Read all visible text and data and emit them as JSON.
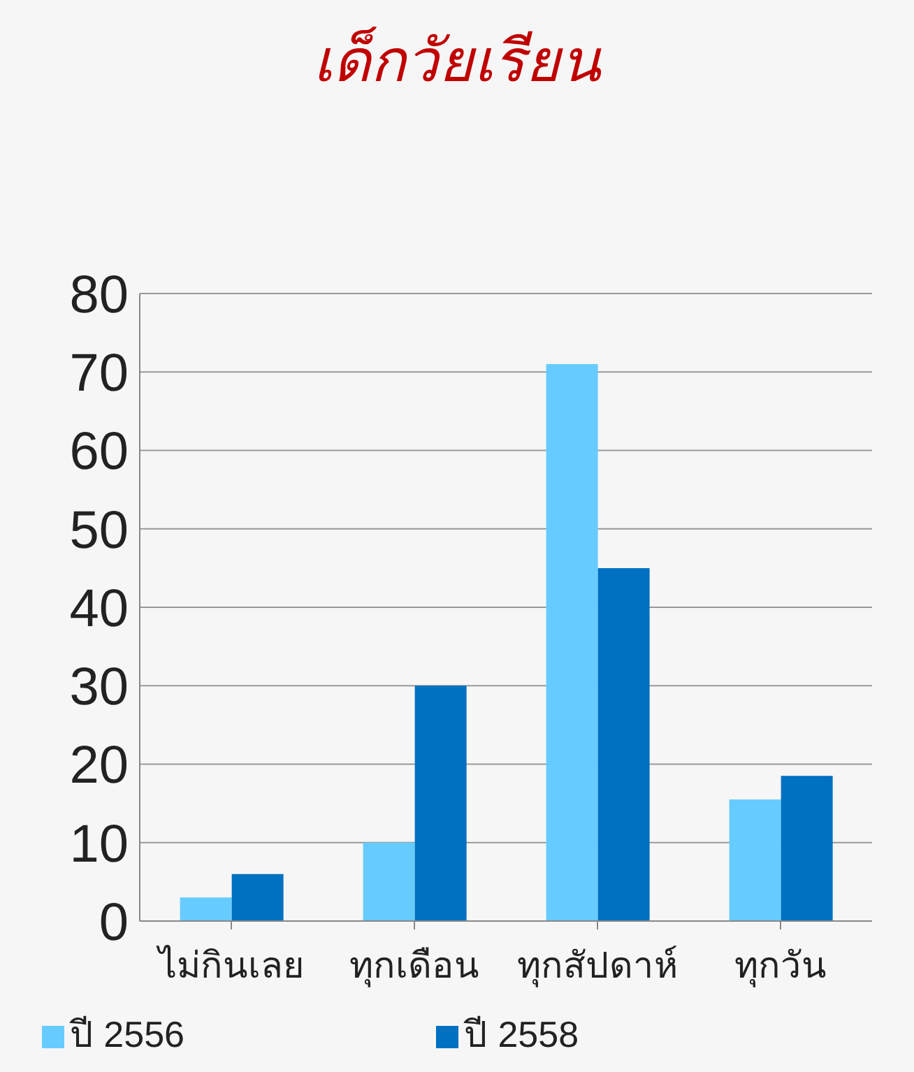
{
  "chart_data": {
    "type": "bar",
    "title": "เด็กวัยเรียน",
    "categories": [
      "ไม่กินเลย",
      "ทุกเดือน",
      "ทุกสัปดาห์",
      "ทุกวัน"
    ],
    "series": [
      {
        "name": "ปี 2556",
        "color": "#66ccff",
        "values": [
          3,
          10,
          71,
          15.5
        ]
      },
      {
        "name": "ปี 2558",
        "color": "#0070c0",
        "values": [
          6,
          30,
          45,
          18.5
        ]
      }
    ],
    "ylim": [
      0,
      80
    ],
    "yticks": [
      0,
      10,
      20,
      30,
      40,
      50,
      60,
      70,
      80
    ],
    "grid": "y",
    "legend": "bottom"
  }
}
